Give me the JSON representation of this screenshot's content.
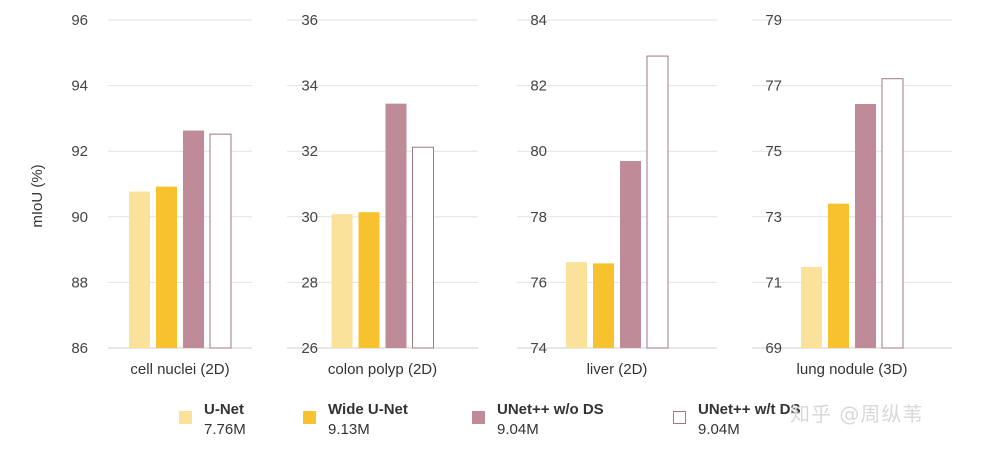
{
  "chart_data": {
    "type": "bar",
    "ylabel": "mIoU (%)",
    "series_names": [
      "U-Net",
      "Wide U-Net",
      "UNet++ w/o DS",
      "UNet++ w/t DS"
    ],
    "series_colors": [
      "#fbe29a",
      "#f8c22e",
      "#c08b99",
      "#ffffff"
    ],
    "series_strokes": [
      "none",
      "none",
      "none",
      "#a07882"
    ],
    "panels": [
      {
        "label": "cell nuclei (2D)",
        "ylim": [
          86,
          96
        ],
        "ticks": [
          86,
          88,
          90,
          92,
          94,
          96
        ],
        "values": [
          90.77,
          90.92,
          92.63,
          92.52
        ]
      },
      {
        "label": "colon polyp (2D)",
        "ylim": [
          26,
          36
        ],
        "ticks": [
          26,
          28,
          30,
          32,
          34,
          36
        ],
        "values": [
          30.08,
          30.14,
          33.45,
          32.12
        ]
      },
      {
        "label": "liver (2D)",
        "ylim": [
          74,
          84
        ],
        "ticks": [
          74,
          76,
          78,
          80,
          82,
          84
        ],
        "values": [
          76.62,
          76.58,
          79.7,
          82.9
        ]
      },
      {
        "label": "lung nodule (3D)",
        "ylim": [
          69,
          79
        ],
        "ticks": [
          69,
          71,
          73,
          75,
          77,
          79
        ],
        "values": [
          71.47,
          73.4,
          76.44,
          77.21
        ]
      }
    ]
  },
  "legend": [
    {
      "name": "U-Net",
      "params": "7.76M"
    },
    {
      "name": "Wide U-Net",
      "params": "9.13M"
    },
    {
      "name": "UNet++ w/o DS",
      "params": "9.04M"
    },
    {
      "name": "UNet++ w/t DS",
      "params": "9.04M"
    }
  ],
  "watermark": "知乎 @周纵苇"
}
